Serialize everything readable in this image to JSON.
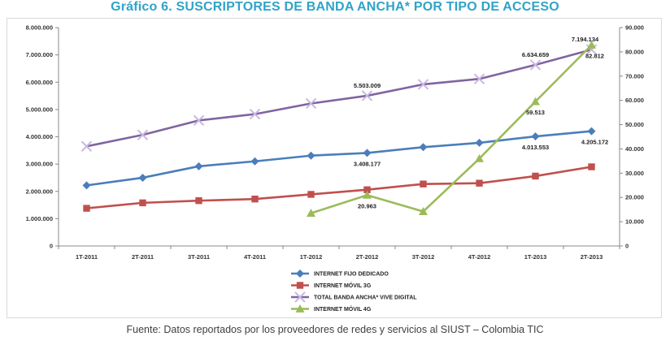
{
  "title": "Gráfico 6. SUSCRIPTORES DE BANDA ANCHA* POR TIPO DE ACCESO",
  "source": "Fuente: Datos reportados por los proveedores de redes y servicios al SIUST – Colombia TIC",
  "chart_data": {
    "type": "line",
    "categories": [
      "1T-2011",
      "2T-2011",
      "3T-2011",
      "4T-2011",
      "1T-2012",
      "2T-2012",
      "3T-2012",
      "4T-2012",
      "1T-2013",
      "2T-2013"
    ],
    "y_left": {
      "ticks": [
        "0",
        "1.000.000",
        "2.000.000",
        "3.000.000",
        "4.000.000",
        "5.000.000",
        "6.000.000",
        "7.000.000",
        "8.000.000"
      ],
      "range": [
        0,
        8000000
      ]
    },
    "y_right": {
      "ticks": [
        "0",
        "10.000",
        "20.000",
        "30.000",
        "40.000",
        "50.000",
        "60.000",
        "70.000",
        "80.000",
        "90.000"
      ],
      "range": [
        0,
        90000
      ]
    },
    "grid": false,
    "legend_position": "bottom",
    "series": [
      {
        "name": "INTERNET FIJO DEDICADO",
        "axis": "left",
        "color": "#4a7ebb",
        "marker": "diamond",
        "values": [
          2220000,
          2500000,
          2920000,
          3100000,
          3310000,
          3408177,
          3620000,
          3780000,
          4013553,
          4205172
        ]
      },
      {
        "name": "INTERNET MÓVIL 3G",
        "axis": "left",
        "color": "#c0504d",
        "marker": "square",
        "values": [
          1380000,
          1580000,
          1660000,
          1720000,
          1890000,
          2060000,
          2270000,
          2300000,
          2560000,
          2900000
        ]
      },
      {
        "name": "TOTAL BANDA ANCHA* VIVE DIGITAL",
        "axis": "left",
        "color": "#8064a2",
        "marker": "x",
        "values": [
          3650000,
          4070000,
          4600000,
          4830000,
          5220000,
          5503009,
          5920000,
          6120000,
          6634659,
          7194134
        ]
      },
      {
        "name": "INTERNET MÓVIL 4G",
        "axis": "right",
        "color": "#9bbb59",
        "marker": "triangle",
        "values": [
          null,
          null,
          null,
          null,
          13500,
          20963,
          14200,
          36000,
          59513,
          82812
        ]
      }
    ],
    "data_labels": [
      {
        "series": 0,
        "index": 5,
        "text": "3.408.177"
      },
      {
        "series": 0,
        "index": 8,
        "text": "4.013.553"
      },
      {
        "series": 0,
        "index": 9,
        "text": "4.205.172"
      },
      {
        "series": 2,
        "index": 5,
        "text": "5.503.009"
      },
      {
        "series": 2,
        "index": 8,
        "text": "6.634.659"
      },
      {
        "series": 2,
        "index": 9,
        "text": "7.194.134"
      },
      {
        "series": 3,
        "index": 5,
        "text": "20.963"
      },
      {
        "series": 3,
        "index": 8,
        "text": "59.513"
      },
      {
        "series": 3,
        "index": 9,
        "text": "82.812"
      }
    ]
  }
}
